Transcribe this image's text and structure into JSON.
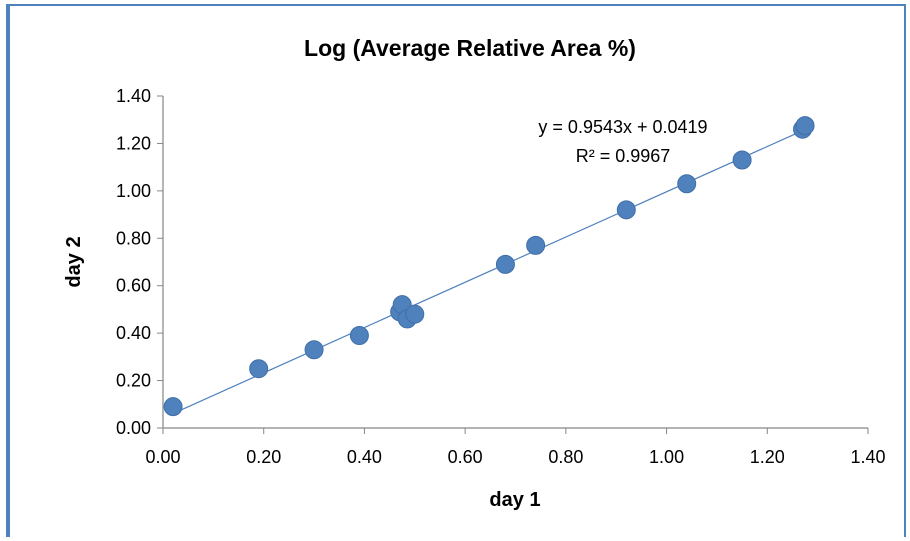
{
  "chart_data": {
    "type": "scatter",
    "title": "Log (Average Relative Area %)",
    "xlabel": "day 1",
    "ylabel": "day 2",
    "xlim": [
      0,
      1.4
    ],
    "ylim": [
      0,
      1.4
    ],
    "x_ticks": [
      "0.00",
      "0.20",
      "0.40",
      "0.60",
      "0.80",
      "1.00",
      "1.20",
      "1.40"
    ],
    "y_ticks": [
      "0.00",
      "0.20",
      "0.40",
      "0.60",
      "0.80",
      "1.00",
      "1.20",
      "1.40"
    ],
    "grid": false,
    "legend": "none",
    "series": [
      {
        "color": "#4f81bd",
        "points": [
          {
            "x": 0.02,
            "y": 0.09
          },
          {
            "x": 0.19,
            "y": 0.25
          },
          {
            "x": 0.3,
            "y": 0.33
          },
          {
            "x": 0.39,
            "y": 0.39
          },
          {
            "x": 0.47,
            "y": 0.49
          },
          {
            "x": 0.475,
            "y": 0.52
          },
          {
            "x": 0.485,
            "y": 0.46
          },
          {
            "x": 0.5,
            "y": 0.48
          },
          {
            "x": 0.68,
            "y": 0.69
          },
          {
            "x": 0.74,
            "y": 0.77
          },
          {
            "x": 0.92,
            "y": 0.92
          },
          {
            "x": 1.04,
            "y": 1.03
          },
          {
            "x": 1.15,
            "y": 1.13
          },
          {
            "x": 1.27,
            "y": 1.26
          },
          {
            "x": 1.275,
            "y": 1.275
          }
        ]
      }
    ],
    "trendline": {
      "type": "linear",
      "slope": 0.9543,
      "intercept": 0.0419,
      "x_range": [
        0.02,
        1.275
      ],
      "color": "#4f81bd",
      "equation_label": "y = 0.9543x + 0.0419",
      "r2_label": "R² = 0.9967"
    }
  }
}
